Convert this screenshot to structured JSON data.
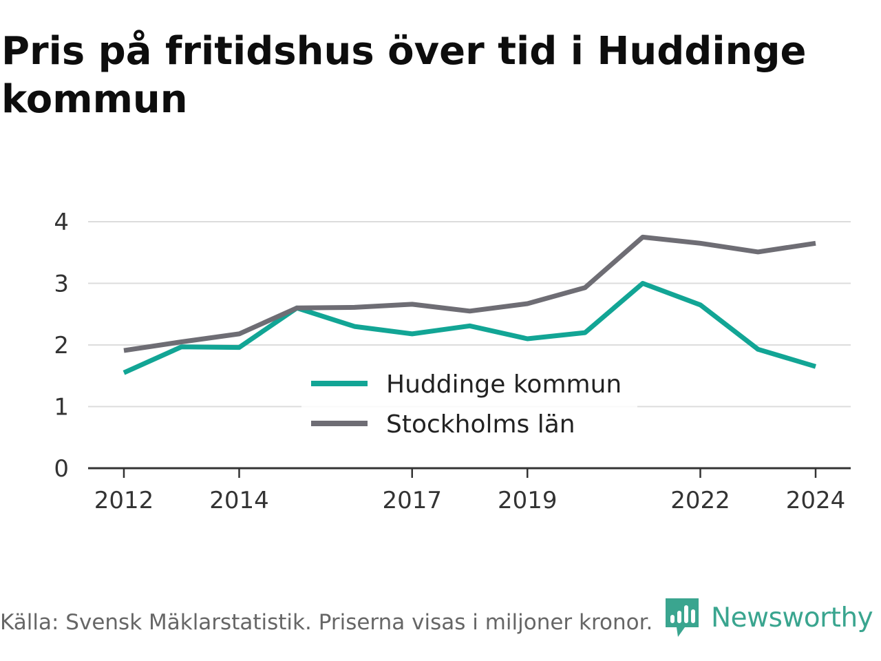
{
  "title": "Pris på fritidshus över tid i Huddinge kommun",
  "source_note": "Källa: Svensk Mäklarstatistik. Priserna visas i miljoner kronor.",
  "brand": {
    "name": "Newsworthy",
    "icon": "newsworthy-logo-icon",
    "color": "#3aa58f"
  },
  "chart_data": {
    "type": "line",
    "title": "Pris på fritidshus över tid i Huddinge kommun",
    "x": [
      2012,
      2013,
      2014,
      2015,
      2016,
      2017,
      2018,
      2019,
      2020,
      2021,
      2022,
      2023,
      2024
    ],
    "x_ticks": [
      "2012",
      "2014",
      "2017",
      "2019",
      "2022",
      "2024"
    ],
    "y_ticks": [
      "0",
      "1",
      "2",
      "3",
      "4"
    ],
    "ylim": [
      0,
      4.3
    ],
    "xlabel": "",
    "ylabel": "",
    "grid": true,
    "legend_position": "center",
    "series": [
      {
        "name": "Huddinge kommun",
        "color": "#12a595",
        "values": [
          1.55,
          1.97,
          1.96,
          2.6,
          2.3,
          2.18,
          2.31,
          2.1,
          2.2,
          3.0,
          2.65,
          1.93,
          1.65
        ]
      },
      {
        "name": "Stockholms län",
        "color": "#6e6d74",
        "values": [
          1.91,
          2.05,
          2.18,
          2.6,
          2.61,
          2.66,
          2.55,
          2.67,
          2.93,
          3.75,
          3.65,
          3.51,
          3.65
        ]
      }
    ]
  }
}
